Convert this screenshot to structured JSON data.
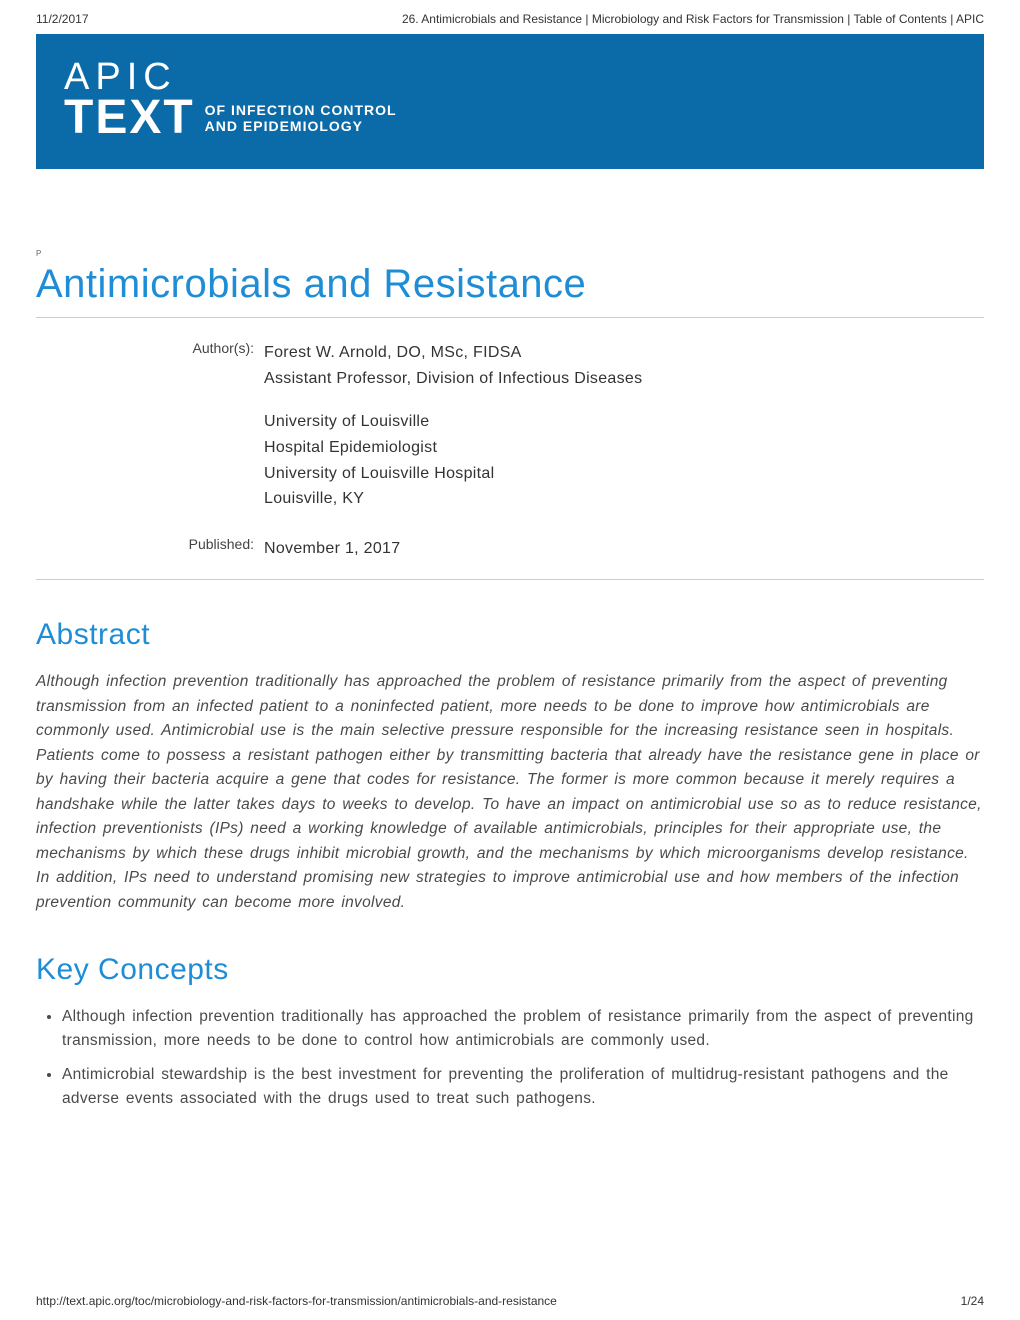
{
  "print_header": {
    "date": "11/2/2017",
    "title": "26. Antimicrobials and Resistance | Microbiology and Risk Factors for Transmission | Table of Contents | APIC"
  },
  "banner": {
    "logo_top": "APIC",
    "logo_main": "TEXT",
    "logo_sub_line1": "OF INFECTION CONTROL",
    "logo_sub_line2": "AND EPIDEMIOLOGY",
    "bg_color": "#0b6ba8"
  },
  "page": {
    "title": "Antimicrobials and Resistance",
    "title_color": "#1f8dd6"
  },
  "meta": {
    "author_label": "Author(s):",
    "author_name": "Forest W. Arnold, DO, MSc, FIDSA",
    "author_title": "Assistant Professor, Division of Infectious Diseases",
    "affil_1": "University of Louisville",
    "affil_2": "Hospital Epidemiologist",
    "affil_3": "University of Louisville Hospital",
    "affil_4": "Louisville, KY",
    "published_label": "Published:",
    "published_value": "November 1, 2017"
  },
  "abstract": {
    "heading": "Abstract",
    "text": "Although infection prevention traditionally has approached the problem of resistance primarily from the aspect of preventing transmission from an infected patient to a noninfected patient, more needs to be done to improve how antimicrobials are commonly used. Antimicrobial use is the main selective pressure responsible for the increasing resistance seen in hospitals. Patients come to possess a resistant pathogen either by transmitting bacteria that already have the resistance gene in place or by having their bacteria acquire a gene that codes for resistance. The former is more common because it merely requires a handshake while the latter takes days to weeks to develop. To have an impact on antimicrobial use so as to reduce resistance, infection preventionists (IPs) need a working knowledge of available antimicrobials, principles for their appropriate use, the mechanisms by which these drugs inhibit microbial growth, and the mechanisms by which microorganisms develop resistance. In addition, IPs need to understand promising new strategies to improve antimicrobial use and how members of the infection prevention community can become more involved."
  },
  "key_concepts": {
    "heading": "Key Concepts",
    "items": [
      "Although infection prevention traditionally has approached the problem of resistance primarily from the aspect of preventing transmission, more needs to be done to control how antimicrobials are commonly used.",
      "Antimicrobial stewardship is the best investment for preventing the proliferation of multidrug-resistant pathogens and the adverse events associated with the drugs used to treat such pathogens."
    ]
  },
  "print_footer": {
    "url": "http://text.apic.org/toc/microbiology-and-risk-factors-for-transmission/antimicrobials-and-resistance",
    "page": "1/24"
  },
  "colors": {
    "heading": "#1f8dd6",
    "body_text": "#4a4a4a",
    "rule": "#cccccc",
    "background": "#ffffff"
  }
}
